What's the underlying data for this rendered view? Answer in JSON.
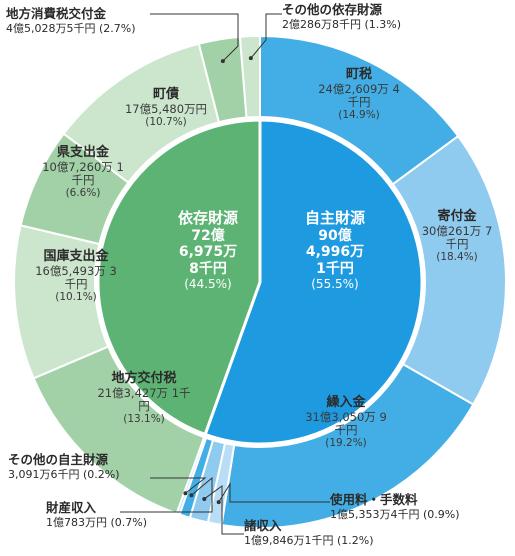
{
  "colors": {
    "own_inner": "#1e9ae0",
    "dep_inner": "#5db374",
    "own_outer_dark": "#43aee5",
    "own_outer_light": "#8fcaef",
    "own_outer_pale": "#b9ddf5",
    "dep_outer_dark": "#a3d1a7",
    "dep_outer_light": "#cce6cd",
    "separator": "#ffffff",
    "leader": "#333333"
  },
  "chart_data": {
    "type": "pie",
    "title": "",
    "inner": [
      {
        "name": "自主財源",
        "lines": [
          "90億",
          "4,996万",
          "1千円"
        ],
        "pct": "(55.5%)",
        "value": 55.5
      },
      {
        "name": "依存財源",
        "lines": [
          "72億",
          "6,975万",
          "8千円"
        ],
        "pct": "(44.5%)",
        "value": 44.5
      }
    ],
    "outer": [
      {
        "name": "町税",
        "amount": "24億2,609万 4千円",
        "pct": "(14.9%)",
        "value": 14.9,
        "group": "own"
      },
      {
        "name": "寄付金",
        "amount": "30億261万 7千円",
        "pct": "(18.4%)",
        "value": 18.4,
        "group": "own"
      },
      {
        "name": "繰入金",
        "amount": "31億3,050万 9千円",
        "pct": "(19.2%)",
        "value": 19.2,
        "group": "own"
      },
      {
        "name": "使用料・手数料",
        "amount": "1億5,353万4千円",
        "pct": "(0.9%)",
        "value": 0.9,
        "group": "own"
      },
      {
        "name": "諸収入",
        "amount": "1億9,846万1千円",
        "pct": "(1.2%)",
        "value": 1.2,
        "group": "own"
      },
      {
        "name": "財産収入",
        "amount": "1億783万円",
        "pct": "(0.7%)",
        "value": 0.7,
        "group": "own"
      },
      {
        "name": "その他の自主財源",
        "amount": "3,091万6千円",
        "pct": "(0.2%)",
        "value": 0.2,
        "group": "own"
      },
      {
        "name": "地方交付税",
        "amount": "21億3,427万 1千円",
        "pct": "(13.1%)",
        "value": 13.1,
        "group": "dep"
      },
      {
        "name": "国庫支出金",
        "amount": "16億5,493万 3千円",
        "pct": "(10.1%)",
        "value": 10.1,
        "group": "dep"
      },
      {
        "name": "県支出金",
        "amount": "10億7,260万 1千円",
        "pct": "(6.6%)",
        "value": 6.6,
        "group": "dep"
      },
      {
        "name": "町債",
        "amount": "17億5,480万円",
        "pct": "(10.7%)",
        "value": 10.7,
        "group": "dep"
      },
      {
        "name": "地方消費税交付金",
        "amount": "4億5,028万5千円",
        "pct": "(2.7%)",
        "value": 2.7,
        "group": "dep"
      },
      {
        "name": "その他の依存財源",
        "amount": "2億286万8千円",
        "pct": "(1.3%)",
        "value": 1.3,
        "group": "dep"
      }
    ]
  }
}
